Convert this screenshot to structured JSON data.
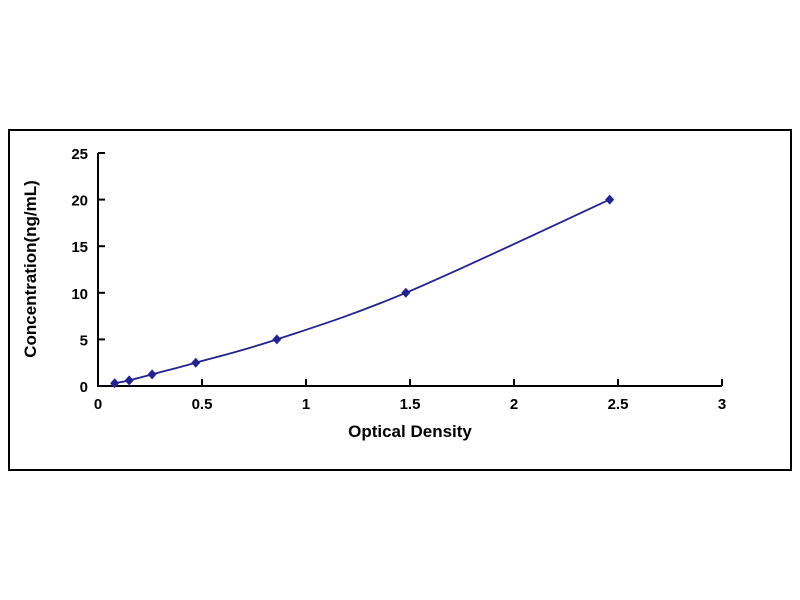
{
  "chart_data": {
    "type": "line",
    "title": "",
    "xlabel": "Optical Density",
    "ylabel": "Concentration(ng/mL)",
    "x": [
      0.08,
      0.15,
      0.26,
      0.47,
      0.86,
      1.48,
      2.46
    ],
    "y": [
      0.3,
      0.6,
      1.25,
      2.5,
      5,
      10,
      20
    ],
    "xlim": [
      0,
      3
    ],
    "ylim": [
      0,
      25
    ],
    "xticks": [
      0,
      0.5,
      1,
      1.5,
      2,
      2.5,
      3
    ],
    "xtick_labels": [
      "0",
      "0.5",
      "1",
      "1.5",
      "2",
      "2.5",
      "3"
    ],
    "yticks": [
      0,
      5,
      10,
      15,
      20,
      25
    ],
    "ytick_labels": [
      "0",
      "5",
      "10",
      "15",
      "20",
      "25"
    ],
    "series_color": "#23238E",
    "axis_color": "#000000",
    "marker": "diamond",
    "grid": false,
    "legend_position": "none"
  }
}
